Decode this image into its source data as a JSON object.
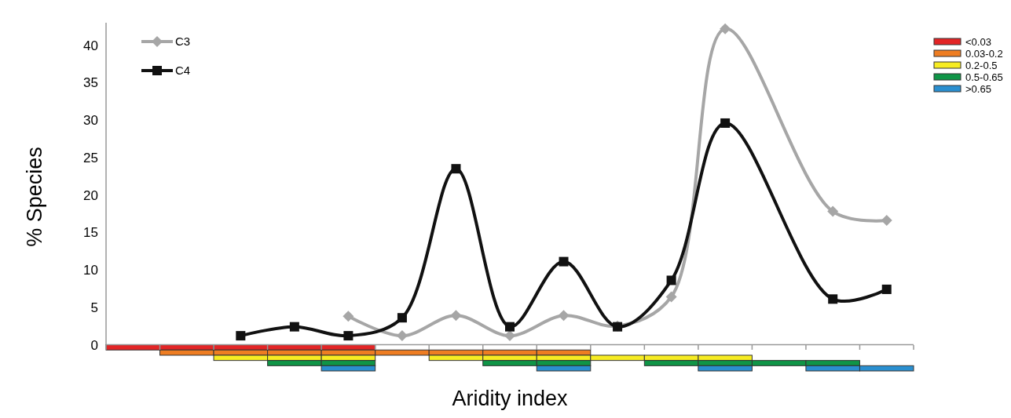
{
  "chart_data": {
    "type": "line",
    "xlabel": "Aridity index",
    "ylabel": "% Species",
    "categories": [
      null,
      null,
      null,
      null,
      null,
      null,
      null,
      null,
      null,
      null,
      null,
      null,
      null,
      null,
      null
    ],
    "ylim": [
      -3.5,
      43
    ],
    "yticks": [
      0,
      5,
      10,
      15,
      20,
      25,
      30,
      35,
      40
    ],
    "grid": false,
    "ref_lines": [
      {
        "axis": "y",
        "value": 0,
        "color": "#999999"
      }
    ],
    "legend": "top right",
    "line_style": "solid",
    "series": [
      {
        "name": "C3",
        "color": "#a6a6a6",
        "marker": "diamond",
        "values": [
          null,
          null,
          null,
          null,
          3.8,
          1.2,
          3.9,
          1.2,
          3.9,
          2.5,
          6.4,
          42.2,
          null,
          17.8,
          16.6
        ]
      },
      {
        "name": "C4",
        "color": "#111111",
        "marker": "square",
        "values": [
          null,
          null,
          1.2,
          2.4,
          1.2,
          3.6,
          23.5,
          2.4,
          11.1,
          2.4,
          8.6,
          29.6,
          null,
          6.1,
          7.4
        ]
      },
      {
        "name": "<0.03",
        "type": "bar",
        "color": "#e32526",
        "base": [
          0,
          0,
          0,
          0,
          0,
          null,
          null,
          null,
          null,
          null,
          null,
          null,
          null,
          null,
          null
        ],
        "values": [
          -0.7,
          -0.7,
          -0.7,
          -0.7,
          -0.7,
          null,
          null,
          null,
          null,
          null,
          null,
          null,
          null,
          null,
          null
        ]
      },
      {
        "name": "0.03-0.2",
        "type": "bar",
        "color": "#ee7d22",
        "base": [
          null,
          -0.7,
          -0.7,
          -0.7,
          -0.7,
          -0.7,
          -0.7,
          -0.7,
          -0.7,
          null,
          null,
          null,
          null,
          null,
          null
        ],
        "values": [
          null,
          -0.7,
          -0.7,
          -0.7,
          -0.7,
          -0.7,
          -0.7,
          -0.7,
          -0.7,
          null,
          null,
          null,
          null,
          null,
          null
        ]
      },
      {
        "name": "0.2-0.5",
        "type": "bar",
        "color": "#f7ec22",
        "base": [
          null,
          null,
          -1.4,
          -1.4,
          -1.4,
          null,
          -1.4,
          -1.4,
          -1.4,
          -1.4,
          -1.4,
          -1.4,
          null,
          null,
          null
        ],
        "values": [
          null,
          null,
          -0.7,
          -0.7,
          -0.7,
          null,
          -0.7,
          -0.7,
          -0.7,
          -0.7,
          -0.7,
          -0.7,
          null,
          null,
          null
        ]
      },
      {
        "name": "0.5-0.65",
        "type": "bar",
        "color": "#0f9547",
        "base": [
          null,
          null,
          null,
          -2.1,
          -2.1,
          null,
          null,
          -2.1,
          -2.1,
          null,
          -2.1,
          -2.1,
          -2.1,
          -2.1,
          null
        ],
        "values": [
          null,
          null,
          null,
          -0.7,
          -0.7,
          null,
          null,
          -0.7,
          -0.7,
          null,
          -0.7,
          -0.7,
          -0.7,
          -0.7,
          null
        ]
      },
      {
        "name": ">0.65",
        "type": "bar",
        "color": "#2a8fd0",
        "base": [
          null,
          null,
          null,
          null,
          -2.8,
          null,
          null,
          null,
          -2.8,
          null,
          null,
          -2.8,
          null,
          -2.8,
          -2.8
        ],
        "values": [
          null,
          null,
          null,
          null,
          -0.7,
          null,
          null,
          null,
          -0.7,
          null,
          null,
          -0.7,
          null,
          -0.7,
          -0.7
        ]
      }
    ]
  }
}
